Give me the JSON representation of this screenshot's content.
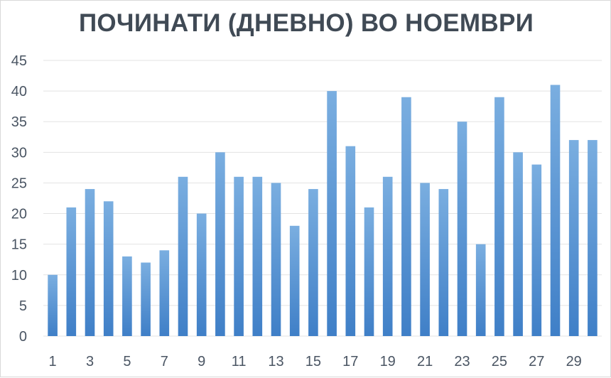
{
  "chart_data": {
    "type": "bar",
    "title": "ПОЧИНАТИ (ДНЕВНО) ВО НОЕМВРИ",
    "categories": [
      "1",
      "2",
      "3",
      "4",
      "5",
      "6",
      "7",
      "8",
      "9",
      "10",
      "11",
      "12",
      "13",
      "14",
      "15",
      "16",
      "17",
      "18",
      "19",
      "20",
      "21",
      "22",
      "23",
      "24",
      "25",
      "26",
      "27",
      "28",
      "29",
      "30"
    ],
    "x_tick_labels": [
      "1",
      "3",
      "5",
      "7",
      "9",
      "11",
      "13",
      "15",
      "17",
      "19",
      "21",
      "23",
      "25",
      "27",
      "29"
    ],
    "values": [
      10,
      21,
      24,
      22,
      13,
      12,
      14,
      26,
      20,
      30,
      26,
      26,
      25,
      18,
      24,
      40,
      31,
      21,
      26,
      39,
      25,
      24,
      35,
      15,
      39,
      30,
      28,
      41,
      32,
      32
    ],
    "ylim": [
      0,
      45
    ],
    "y_ticks": [
      "0",
      "5",
      "10",
      "15",
      "20",
      "25",
      "30",
      "35",
      "40",
      "45"
    ],
    "grid": true,
    "legend": "none",
    "colors": {
      "bar_top": "#7aaee0",
      "bar_bottom": "#3f7fc7",
      "grid": "#e3e3e3"
    }
  }
}
